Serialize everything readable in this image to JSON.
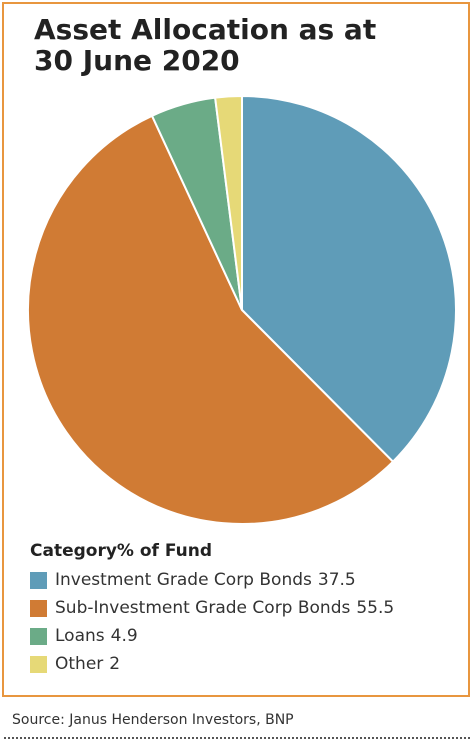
{
  "chart_data": {
    "type": "pie",
    "title_lines": [
      "Asset Allocation as at",
      "30 June 2020"
    ],
    "legend_header": {
      "category": "Category",
      "value": "% of Fund"
    },
    "slices": [
      {
        "label": "Investment Grade Corp Bonds",
        "value": 37.5,
        "value_text": "37.5",
        "color": "#5f9cb8"
      },
      {
        "label": "Sub-Investment Grade Corp Bonds",
        "value": 55.5,
        "value_text": "55.5",
        "color": "#d07b34"
      },
      {
        "label": "Loans",
        "value": 4.9,
        "value_text": "4.9",
        "color": "#6bab87"
      },
      {
        "label": "Other",
        "value": 2,
        "value_text": "2",
        "color": "#e6d977"
      }
    ],
    "legend_position": "bottom",
    "start_angle_deg": 0,
    "direction": "clockwise"
  },
  "source": "Source: Janus Henderson Investors, BNP",
  "colors": {
    "border": "#e8963f",
    "divider": "#ffffff"
  }
}
